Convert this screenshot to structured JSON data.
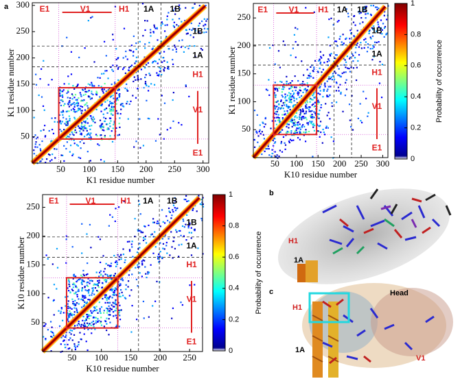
{
  "panel_labels": [
    "a",
    "b",
    "c"
  ],
  "maps": [
    {
      "xlabel": "K1  residue number",
      "ylabel": "K1  residue number",
      "xlim": [
        0,
        310
      ],
      "ylim": [
        0,
        305
      ],
      "xticks": [
        50,
        100,
        150,
        200,
        250,
        300
      ],
      "yticks": [
        50,
        100,
        150,
        200,
        250,
        300
      ],
      "regions_top": [
        "E1",
        "V1",
        "H1",
        "1A",
        "1B"
      ],
      "regions_right": [
        "1B",
        "1A",
        "H1",
        "V1",
        "E1"
      ]
    },
    {
      "xlabel": "K10  residue number",
      "ylabel": "K1  residue number",
      "xlim": [
        0,
        312
      ],
      "ylim": [
        0,
        276
      ],
      "xticks": [
        50,
        100,
        150,
        200,
        250,
        300
      ],
      "yticks": [
        50,
        100,
        150,
        200,
        250
      ],
      "regions_top": [
        "E1",
        "V1",
        "H1",
        "1A",
        "1B"
      ],
      "regions_right": [
        "1B",
        "1A",
        "H1",
        "V1",
        "E1"
      ]
    },
    {
      "xlabel": "K10  residue number",
      "ylabel": "K10  residue number",
      "xlim": [
        0,
        272
      ],
      "ylim": [
        0,
        272
      ],
      "xticks": [
        50,
        100,
        150,
        200,
        250
      ],
      "yticks": [
        50,
        100,
        150,
        200,
        250
      ],
      "regions_top": [
        "E1",
        "V1",
        "H1",
        "1A",
        "1B"
      ],
      "regions_right": [
        "1B",
        "1A",
        "H1",
        "V1",
        "E1"
      ]
    }
  ],
  "colorbars": [
    {
      "label": "Probability of occurrence",
      "ticks": [
        0,
        0.2,
        0.4,
        0.6,
        0.8,
        1
      ]
    },
    {
      "label": "Probability of occurrence",
      "ticks": [
        0,
        0.2,
        0.4,
        0.6,
        0.8,
        1
      ]
    }
  ],
  "panel_b": {
    "labels": [
      "H1",
      "1A"
    ]
  },
  "panel_c": {
    "labels": [
      "H1",
      "Head",
      "1A",
      "V1"
    ]
  }
}
